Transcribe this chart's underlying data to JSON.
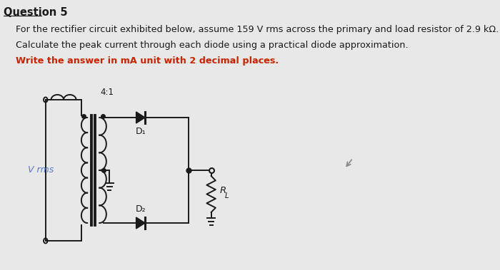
{
  "title": "Question 5",
  "line1": "For the rectifier circuit exhibited below, assume 159 V rms across the primary and load resistor of 2.9 kΩ.",
  "line2": "Calculate the peak current through each diode using a practical diode approximation.",
  "line3": "Write the answer in mA unit with 2 decimal places.",
  "ratio_label": "4:1",
  "vrms_label": "V rms",
  "d1_label": "D₁",
  "d2_label": "D₂",
  "rl_label": "R",
  "rl_sub": "L",
  "bg_color": "#e8e8e8",
  "text_color": "#1a1a1a",
  "red_color": "#cc2200",
  "vrms_color": "#5577cc",
  "circuit_color": "#1a1a1a",
  "title_fontsize": 10.5,
  "body_fontsize": 9.2,
  "highlight_fontsize": 9.2
}
